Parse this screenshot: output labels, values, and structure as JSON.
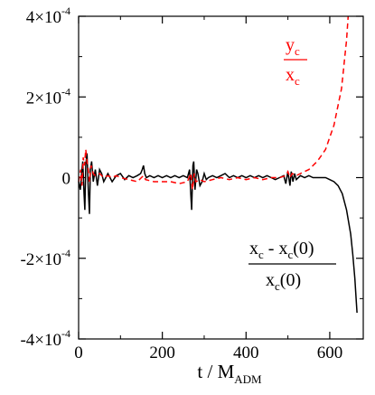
{
  "chart_data": {
    "type": "line",
    "xlabel": "t / M",
    "xlabel_sub": "ADM",
    "xlim": [
      0,
      680
    ],
    "ylim": [
      -0.0004,
      0.0004
    ],
    "grid": false,
    "x_ticks": [
      {
        "value": 0,
        "label": "0"
      },
      {
        "value": 200,
        "label": "200"
      },
      {
        "value": 400,
        "label": "400"
      },
      {
        "value": 600,
        "label": "600"
      }
    ],
    "y_ticks": [
      {
        "value": 0.0004,
        "base": "4×10",
        "exp": "-4"
      },
      {
        "value": 0.0002,
        "base": "2×10",
        "exp": "-4"
      },
      {
        "value": 0,
        "base": "0",
        "exp": ""
      },
      {
        "value": -0.0002,
        "base": "-2×10",
        "exp": "-4"
      },
      {
        "value": -0.0004,
        "base": "-4×10",
        "exp": "-4"
      }
    ],
    "series": [
      {
        "color": "#000000",
        "dash": "none",
        "points": [
          [
            0,
            -1e-05
          ],
          [
            4,
            -3e-05
          ],
          [
            8,
            2e-05
          ],
          [
            10,
            4e-05
          ],
          [
            13,
            -4e-05
          ],
          [
            15,
            -8e-05
          ],
          [
            17,
            3e-05
          ],
          [
            20,
            6e-05
          ],
          [
            23,
            -3e-05
          ],
          [
            26,
            -9e-05
          ],
          [
            28,
            2e-05
          ],
          [
            31,
            4e-05
          ],
          [
            35,
            -1e-05
          ],
          [
            40,
            2e-05
          ],
          [
            45,
            -2e-05
          ],
          [
            50,
            2e-05
          ],
          [
            55,
            1e-05
          ],
          [
            60,
            -1e-05
          ],
          [
            70,
            1e-05
          ],
          [
            80,
            -1e-05
          ],
          [
            90,
            5e-06
          ],
          [
            100,
            1e-05
          ],
          [
            110,
            -5e-06
          ],
          [
            120,
            5e-06
          ],
          [
            130,
            0
          ],
          [
            140,
            5e-06
          ],
          [
            148,
            1e-05
          ],
          [
            152,
            2e-05
          ],
          [
            155,
            3e-05
          ],
          [
            158,
            1e-05
          ],
          [
            162,
            0
          ],
          [
            170,
            5e-06
          ],
          [
            180,
            0
          ],
          [
            190,
            5e-06
          ],
          [
            200,
            0
          ],
          [
            210,
            5e-06
          ],
          [
            220,
            0
          ],
          [
            230,
            5e-06
          ],
          [
            240,
            0
          ],
          [
            250,
            5e-06
          ],
          [
            260,
            0
          ],
          [
            265,
            2e-05
          ],
          [
            268,
            -4e-05
          ],
          [
            270,
            -8e-05
          ],
          [
            273,
            3e-05
          ],
          [
            275,
            4e-05
          ],
          [
            278,
            -3e-05
          ],
          [
            282,
            2e-05
          ],
          [
            285,
            1e-05
          ],
          [
            290,
            -2e-05
          ],
          [
            295,
            -1e-05
          ],
          [
            300,
            1e-05
          ],
          [
            305,
            -5e-06
          ],
          [
            310,
            0
          ],
          [
            320,
            5e-06
          ],
          [
            330,
            0
          ],
          [
            340,
            5e-06
          ],
          [
            350,
            1e-05
          ],
          [
            360,
            0
          ],
          [
            370,
            5e-06
          ],
          [
            380,
            0
          ],
          [
            390,
            5e-06
          ],
          [
            400,
            0
          ],
          [
            410,
            5e-06
          ],
          [
            420,
            0
          ],
          [
            430,
            5e-06
          ],
          [
            440,
            0
          ],
          [
            450,
            5e-06
          ],
          [
            460,
            0
          ],
          [
            470,
            -5e-06
          ],
          [
            480,
            0
          ],
          [
            490,
            5e-06
          ],
          [
            495,
            -1.5e-05
          ],
          [
            500,
            1.5e-05
          ],
          [
            505,
            -2e-05
          ],
          [
            508,
            1.5e-05
          ],
          [
            512,
            -1e-05
          ],
          [
            516,
            1e-05
          ],
          [
            520,
            -5e-06
          ],
          [
            530,
            5e-06
          ],
          [
            540,
            0
          ],
          [
            550,
            5e-06
          ],
          [
            560,
            0
          ],
          [
            570,
            0
          ],
          [
            580,
            0
          ],
          [
            590,
            0
          ],
          [
            600,
            -5e-06
          ],
          [
            610,
            -1e-05
          ],
          [
            620,
            -2e-05
          ],
          [
            630,
            -4e-05
          ],
          [
            640,
            -8e-05
          ],
          [
            650,
            -0.00014
          ],
          [
            655,
            -0.00019
          ],
          [
            660,
            -0.00025
          ],
          [
            663,
            -0.0003
          ],
          [
            665,
            -0.000335
          ]
        ]
      },
      {
        "color": "#ff0000",
        "dash": "6,4",
        "points": [
          [
            0,
            -1e-05
          ],
          [
            5,
            2e-05
          ],
          [
            8,
            -2e-05
          ],
          [
            11,
            5e-05
          ],
          [
            14,
            3e-05
          ],
          [
            17,
            7e-05
          ],
          [
            20,
            4e-05
          ],
          [
            23,
            2e-05
          ],
          [
            26,
            -1e-05
          ],
          [
            30,
            3e-05
          ],
          [
            35,
            1e-05
          ],
          [
            40,
            5e-06
          ],
          [
            50,
            1e-05
          ],
          [
            60,
            0
          ],
          [
            70,
            5e-06
          ],
          [
            80,
            0
          ],
          [
            90,
            5e-06
          ],
          [
            100,
            0
          ],
          [
            120,
            -5e-06
          ],
          [
            140,
            -1e-05
          ],
          [
            150,
            0
          ],
          [
            155,
            5e-06
          ],
          [
            160,
            -5e-06
          ],
          [
            180,
            -1e-05
          ],
          [
            200,
            -1e-05
          ],
          [
            220,
            -1e-05
          ],
          [
            240,
            -1.5e-05
          ],
          [
            260,
            -1e-05
          ],
          [
            268,
            1e-05
          ],
          [
            272,
            -3e-05
          ],
          [
            276,
            1e-05
          ],
          [
            280,
            -1e-05
          ],
          [
            290,
            -5e-06
          ],
          [
            300,
            -1e-05
          ],
          [
            320,
            -5e-06
          ],
          [
            340,
            0
          ],
          [
            360,
            -5e-06
          ],
          [
            380,
            0
          ],
          [
            400,
            -5e-06
          ],
          [
            420,
            0
          ],
          [
            440,
            -5e-06
          ],
          [
            460,
            0
          ],
          [
            480,
            0
          ],
          [
            495,
            5e-06
          ],
          [
            500,
            1.5e-05
          ],
          [
            505,
            0
          ],
          [
            510,
            1e-05
          ],
          [
            520,
            5e-06
          ],
          [
            530,
            1e-05
          ],
          [
            540,
            1.5e-05
          ],
          [
            550,
            2e-05
          ],
          [
            560,
            3e-05
          ],
          [
            570,
            4e-05
          ],
          [
            580,
            5.5e-05
          ],
          [
            590,
            7e-05
          ],
          [
            600,
            0.0001
          ],
          [
            610,
            0.00013
          ],
          [
            620,
            0.00018
          ],
          [
            628,
            0.00022
          ],
          [
            632,
            0.00026
          ],
          [
            636,
            0.0003
          ],
          [
            640,
            0.00034
          ],
          [
            644,
            0.0004
          ]
        ]
      }
    ],
    "annotations": [
      {
        "id": "yc-over-xc",
        "color": "#ff0000",
        "num_base": "y",
        "num_sub": "c",
        "den_base": "x",
        "den_sub": "c"
      },
      {
        "id": "xc-relative",
        "color": "#000000",
        "num_base": "x",
        "num_sub": "c",
        "num_rest": " - x",
        "num_sub2": "c",
        "num_tail": "(0)",
        "den_base": "x",
        "den_sub": "c",
        "den_tail": "(0)"
      }
    ]
  }
}
